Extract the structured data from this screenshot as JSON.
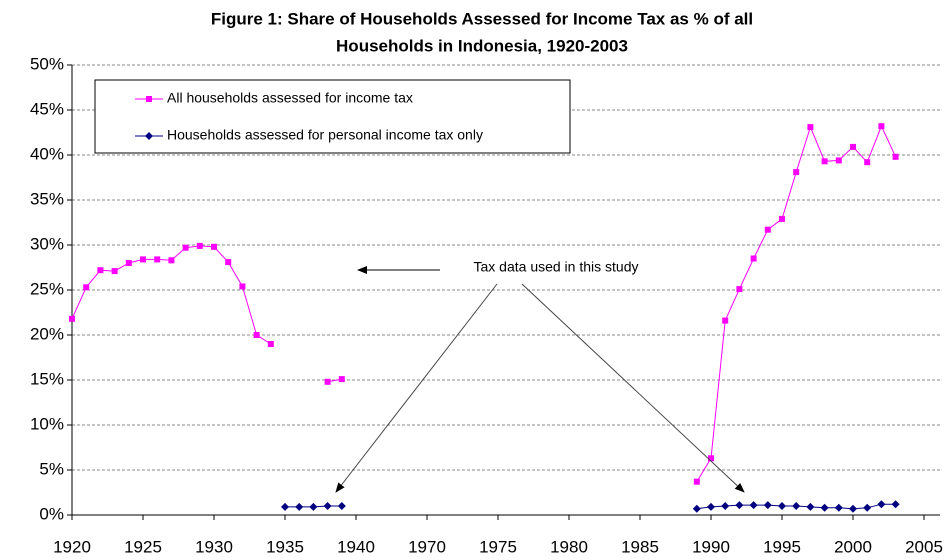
{
  "chart_data": {
    "type": "line",
    "title": [
      "Figure 1: Share of Households Assessed for Income Tax as % of all",
      "Households in Indonesia, 1920-2003"
    ],
    "categories": [
      "1920",
      null,
      null,
      null,
      null,
      "1925",
      null,
      null,
      null,
      null,
      "1930",
      null,
      null,
      null,
      null,
      "1935",
      null,
      null,
      null,
      null,
      "1940",
      null,
      null,
      null,
      null,
      "1970",
      null,
      null,
      null,
      null,
      "1975",
      null,
      null,
      null,
      null,
      "1980",
      null,
      null,
      null,
      null,
      "1985",
      null,
      null,
      null,
      null,
      "1990",
      null,
      null,
      null,
      null,
      "1995",
      null,
      null,
      null,
      null,
      "2000",
      null,
      null,
      null,
      null,
      "2005"
    ],
    "series": [
      {
        "name": "All households assessed for income tax",
        "color": "#ff00ff",
        "marker": "square",
        "values": [
          21.8,
          25.3,
          27.2,
          27.1,
          28.0,
          28.4,
          28.4,
          28.3,
          29.7,
          29.9,
          29.8,
          28.1,
          25.4,
          20.0,
          19.0,
          null,
          null,
          null,
          14.8,
          15.1,
          null,
          null,
          null,
          null,
          null,
          null,
          null,
          null,
          null,
          null,
          null,
          null,
          null,
          null,
          null,
          null,
          null,
          null,
          null,
          null,
          null,
          null,
          null,
          null,
          3.7,
          6.3,
          21.6,
          25.1,
          28.5,
          31.7,
          32.9,
          38.1,
          43.1,
          39.3,
          39.4,
          40.9,
          39.2,
          43.2,
          39.8,
          null,
          null
        ]
      },
      {
        "name": "Households assessed for personal income tax only",
        "color": "#000080",
        "marker": "diamond",
        "values": [
          null,
          null,
          null,
          null,
          null,
          null,
          null,
          null,
          null,
          null,
          null,
          null,
          null,
          null,
          null,
          0.9,
          0.9,
          0.9,
          1.0,
          1.0,
          null,
          null,
          null,
          null,
          null,
          null,
          null,
          null,
          null,
          null,
          null,
          null,
          null,
          null,
          null,
          null,
          null,
          null,
          null,
          null,
          null,
          null,
          null,
          null,
          0.7,
          0.9,
          1.0,
          1.1,
          1.1,
          1.1,
          1.0,
          1.0,
          0.9,
          0.8,
          0.8,
          0.7,
          0.8,
          1.2,
          1.2,
          null,
          null
        ]
      }
    ],
    "annotation": "Tax data used in this study",
    "ylim": [
      0,
      50
    ],
    "yticks": [
      {
        "value": 0,
        "label": "0%"
      },
      {
        "value": 5,
        "label": "5%"
      },
      {
        "value": 10,
        "label": "10%"
      },
      {
        "value": 15,
        "label": "15%"
      },
      {
        "value": 20,
        "label": "20%"
      },
      {
        "value": 25,
        "label": "25%"
      },
      {
        "value": 30,
        "label": "30%"
      },
      {
        "value": 35,
        "label": "35%"
      },
      {
        "value": 40,
        "label": "40%"
      },
      {
        "value": 45,
        "label": "45%"
      },
      {
        "value": 50,
        "label": "50%"
      }
    ],
    "grid": true
  }
}
